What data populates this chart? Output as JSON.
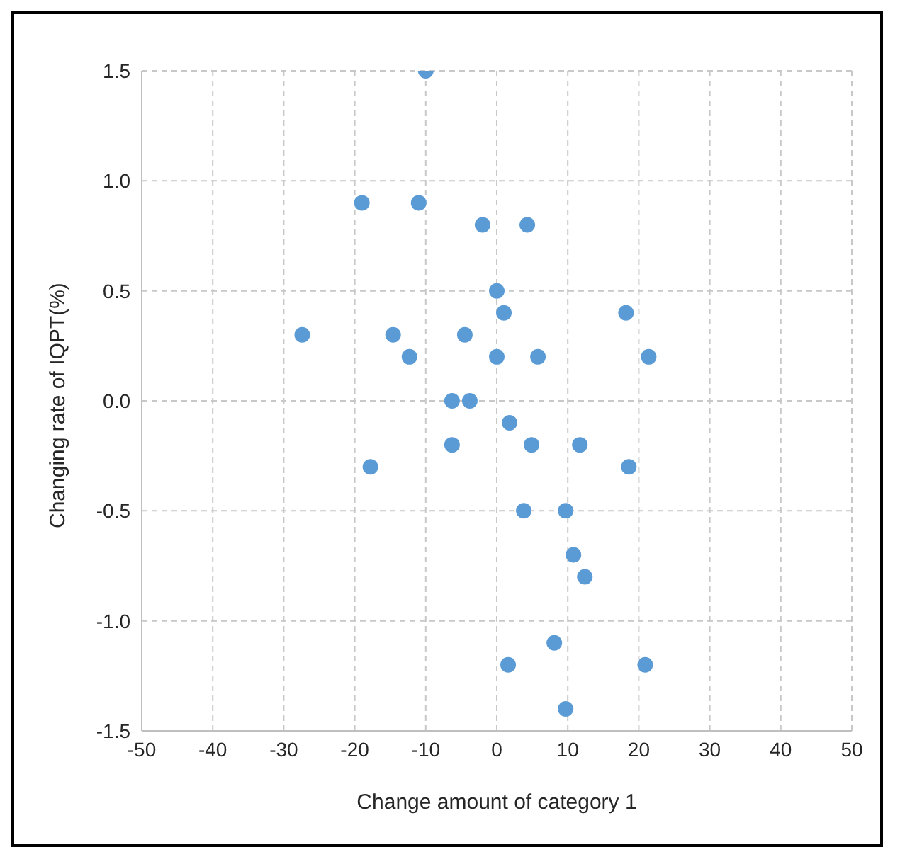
{
  "chart_data": {
    "type": "scatter",
    "xlabel": "Change amount of category 1",
    "ylabel": "Changing rate of IQPT(%)",
    "x": [
      -10,
      -19,
      -11,
      -2,
      4.3,
      0,
      1,
      18.2,
      -27.4,
      -14.6,
      -4.5,
      -12.3,
      0,
      5.8,
      21.4,
      -6.3,
      -3.8,
      1.8,
      -6.3,
      4.9,
      11.7,
      -17.8,
      18.6,
      3.8,
      9.7,
      10.8,
      12.4,
      8.1,
      1.6,
      20.9,
      9.7
    ],
    "series": [
      {
        "color": "#5b9bd5",
        "values": [
          1.5,
          0.9,
          0.9,
          0.8,
          0.8,
          0.5,
          0.4,
          0.4,
          0.3,
          0.3,
          0.3,
          0.2,
          0.2,
          0.2,
          0.2,
          0,
          0,
          -0.1,
          -0.2,
          -0.2,
          -0.2,
          -0.3,
          -0.3,
          -0.5,
          -0.5,
          -0.7,
          -0.8,
          -1.1,
          -1.2,
          -1.2,
          -1.4
        ]
      }
    ],
    "xlim": [
      -50,
      50
    ],
    "xticks": [
      -50,
      -40,
      -30,
      -20,
      -10,
      0,
      10,
      20,
      30,
      40,
      50
    ],
    "ylim": [
      -1.5,
      1.5
    ],
    "yticks": [
      -1.5,
      {
        "value": -1,
        "label": "-1.0"
      },
      -0.5,
      {
        "value": 0,
        "label": "0.0"
      },
      0.5,
      {
        "value": 1,
        "label": "1.0"
      },
      1.5
    ],
    "grid": true,
    "marker": "circle"
  }
}
